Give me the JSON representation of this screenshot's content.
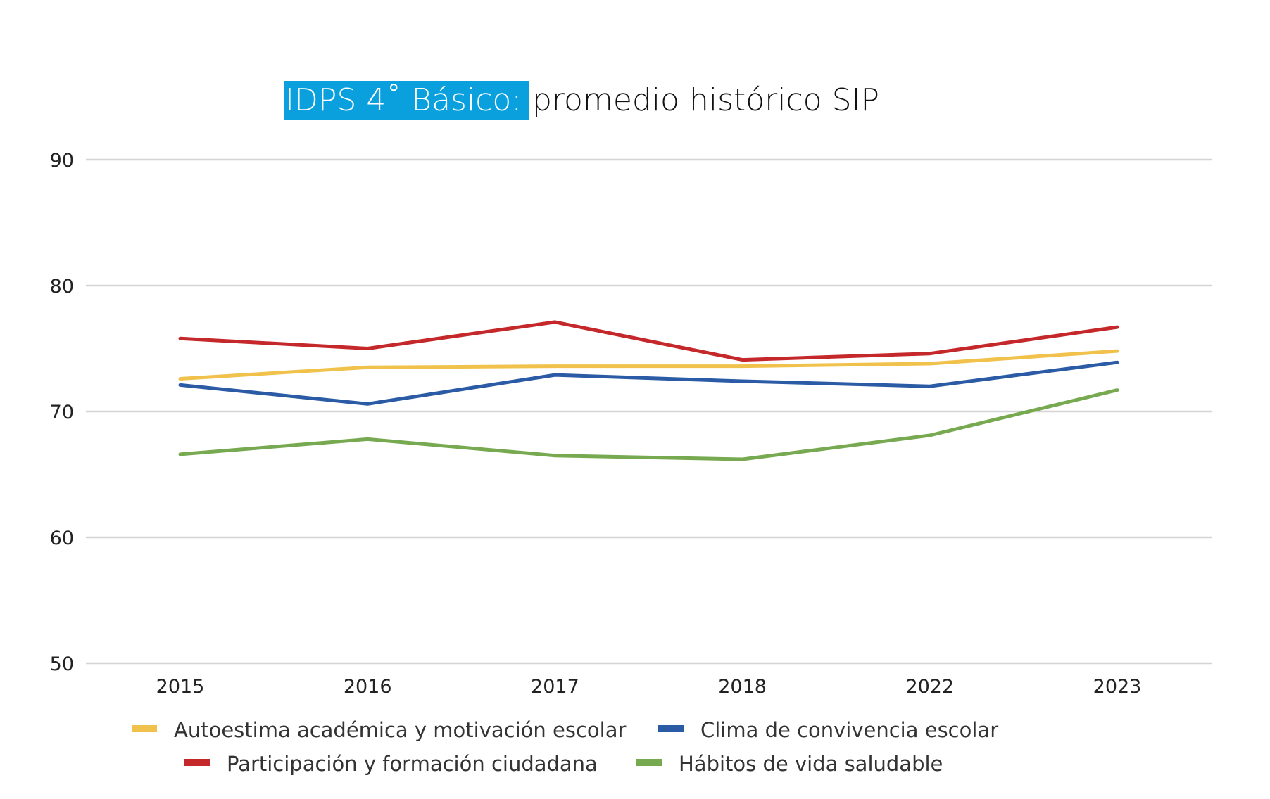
{
  "title": {
    "highlight": "IDPS 4˚ Básico:",
    "rest": "promedio histórico SIP",
    "highlight_bg": "#0aa0de",
    "highlight_color": "#ffffff"
  },
  "chart_data": {
    "type": "line",
    "categories": [
      "2015",
      "2016",
      "2017",
      "2018",
      "2022",
      "2023"
    ],
    "ylim": [
      50,
      90
    ],
    "yticks": [
      50,
      60,
      70,
      80,
      90
    ],
    "grid": true,
    "legend_position": "bottom",
    "series": [
      {
        "name": "Autoestima académica y motivación escolar",
        "color": "#f0c24c",
        "values": [
          72.6,
          73.5,
          73.6,
          73.6,
          73.8,
          74.8
        ]
      },
      {
        "name": "Clima de convivencia escolar",
        "color": "#2b5ba5",
        "values": [
          72.1,
          70.6,
          72.9,
          72.4,
          72.0,
          73.9
        ]
      },
      {
        "name": "Participación y formación ciudadana",
        "color": "#c5282a",
        "values": [
          75.8,
          75.0,
          77.1,
          74.1,
          74.6,
          76.7
        ]
      },
      {
        "name": "Hábitos de vida saludable",
        "color": "#77a950",
        "values": [
          66.6,
          67.8,
          66.5,
          66.2,
          68.1,
          71.7
        ]
      }
    ]
  }
}
